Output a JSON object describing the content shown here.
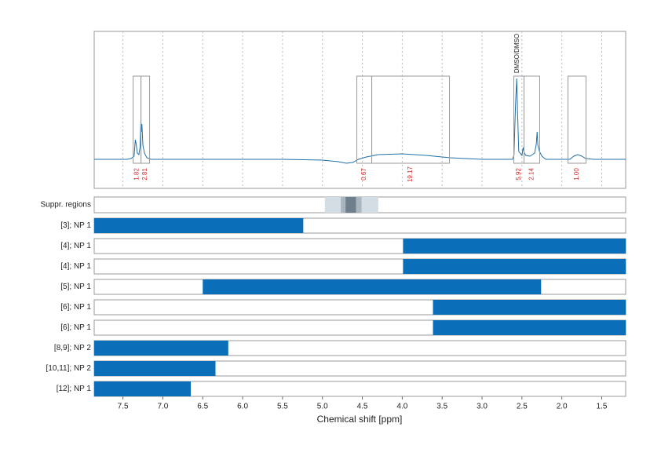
{
  "chart_data": {
    "type": "nmr",
    "xlabel": "Chemical shift [ppm]",
    "xlim": [
      7.86,
      1.2
    ],
    "xticks": [
      7.5,
      {
        "value": 7,
        "label": "7.0"
      },
      6.5,
      {
        "value": 6,
        "label": "6.0"
      },
      5.5,
      {
        "value": 5,
        "label": "5.0"
      },
      4.5,
      {
        "value": 4,
        "label": "4.0"
      },
      3.5,
      {
        "value": 3,
        "label": "3.0"
      },
      2.5,
      {
        "value": 2,
        "label": "2.0"
      },
      1.5
    ],
    "grid": true,
    "spectrum": {
      "color": "#1f6fa8",
      "ylim": [
        -37,
        163
      ],
      "x": [
        7.86,
        7.45,
        7.4,
        7.36,
        7.345,
        7.335,
        7.32,
        7.3,
        7.285,
        7.275,
        7.27,
        7.262,
        7.25,
        7.23,
        7.2,
        7.15,
        5.5,
        5.0,
        4.8,
        4.7,
        4.62,
        4.55,
        4.45,
        4.3,
        4.0,
        3.7,
        3.4,
        3.0,
        2.62,
        2.6,
        2.58,
        2.565,
        2.555,
        2.54,
        2.5,
        2.485,
        2.47,
        2.45,
        2.4,
        2.34,
        2.32,
        2.31,
        2.3,
        2.28,
        2.25,
        2.2,
        1.9,
        1.85,
        1.8,
        1.75,
        1.7,
        1.6,
        1.2
      ],
      "values": [
        0,
        0,
        1,
        4,
        25,
        20,
        8,
        6,
        15,
        50,
        35,
        45,
        18,
        8,
        2,
        0,
        0,
        -1,
        -3,
        -5,
        -4,
        0,
        3,
        6,
        7,
        5,
        2,
        0,
        0,
        5,
        70,
        103,
        60,
        10,
        5,
        15,
        8,
        5,
        4,
        8,
        20,
        35,
        18,
        10,
        4,
        0,
        0,
        4,
        6,
        4,
        1,
        0,
        0
      ]
    },
    "integrals": {
      "color": "#d62728",
      "regions": [
        {
          "from": 7.372,
          "to": 7.274,
          "value": 1.82
        },
        {
          "from": 7.274,
          "to": 7.166,
          "value": 2.81
        },
        {
          "from": 4.569,
          "to": 4.382,
          "value": 0.67
        },
        {
          "from": 4.382,
          "to": 3.408,
          "value": 19.17
        },
        {
          "from": 2.602,
          "to": 2.474,
          "value": 5.92
        },
        {
          "from": 2.474,
          "to": 2.277,
          "value": 2.14
        },
        {
          "from": 1.923,
          "to": 1.697,
          "value": {
            "value": 1,
            "label": "1.00"
          }
        }
      ]
    },
    "annotation": {
      "text": "DMSO/DMSO",
      "x": 2.56
    },
    "suppression": {
      "label": "Suppr. regions",
      "bands": [
        {
          "from": 4.97,
          "to": 4.3,
          "color": "#d5dde4"
        },
        {
          "from": 4.77,
          "to": 4.51,
          "color": "#a9b6c1"
        },
        {
          "from": 4.71,
          "to": 4.58,
          "color": "#6f7f8b"
        }
      ]
    },
    "ranges": {
      "color": "#0a6eb8",
      "rows": [
        {
          "label": "[3]; NP 1",
          "from": 7.86,
          "to": 5.24
        },
        {
          "label": "[4]; NP 1",
          "from": 3.99,
          "to": 1.2
        },
        {
          "label": "[4]; NP 1",
          "from": 3.99,
          "to": 1.2
        },
        {
          "label": "[5]; NP 1",
          "from": 6.5,
          "to": 2.26
        },
        {
          "label": "[6]; NP 1",
          "from": 3.615,
          "to": 1.2
        },
        {
          "label": "[6]; NP 1",
          "from": 3.615,
          "to": 1.2
        },
        {
          "label": "[8,9]; NP 2",
          "from": 7.86,
          "to": 6.18
        },
        {
          "label": "[10,11]; NP 2",
          "from": 7.86,
          "to": 6.34
        },
        {
          "label": "[12]; NP 1",
          "from": 7.86,
          "to": 6.65
        }
      ]
    }
  }
}
